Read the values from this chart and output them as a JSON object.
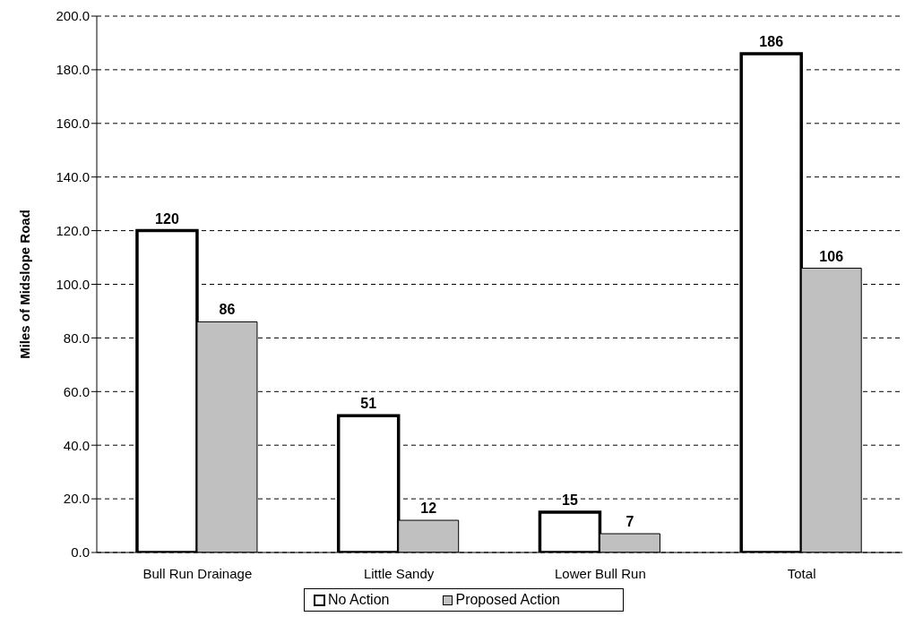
{
  "chart_data": {
    "type": "bar",
    "ylabel": "Miles of Midslope Road",
    "categories": [
      "Bull Run Drainage",
      "Little Sandy",
      "Lower Bull Run",
      "Total"
    ],
    "series": [
      {
        "name": "No Action",
        "color": "#ffffff",
        "values": [
          120,
          51,
          15,
          186
        ]
      },
      {
        "name": "Proposed Action",
        "color": "#c0c0c0",
        "values": [
          86,
          12,
          7,
          106
        ]
      }
    ],
    "ylim": [
      0,
      200
    ],
    "yticks": [
      {
        "value": 0,
        "label": "0.0"
      },
      {
        "value": 20,
        "label": "20.0"
      },
      {
        "value": 40,
        "label": "40.0"
      },
      {
        "value": 60,
        "label": "60.0"
      },
      {
        "value": 80,
        "label": "80.0"
      },
      {
        "value": 100,
        "label": "100.0"
      },
      {
        "value": 120,
        "label": "120.0"
      },
      {
        "value": 140,
        "label": "140.0"
      },
      {
        "value": 160,
        "label": "160.0"
      },
      {
        "value": 180,
        "label": "180.0"
      },
      {
        "value": 200,
        "label": "200.0"
      }
    ],
    "grid": "y",
    "legend": "bottom",
    "data_labels": true
  }
}
